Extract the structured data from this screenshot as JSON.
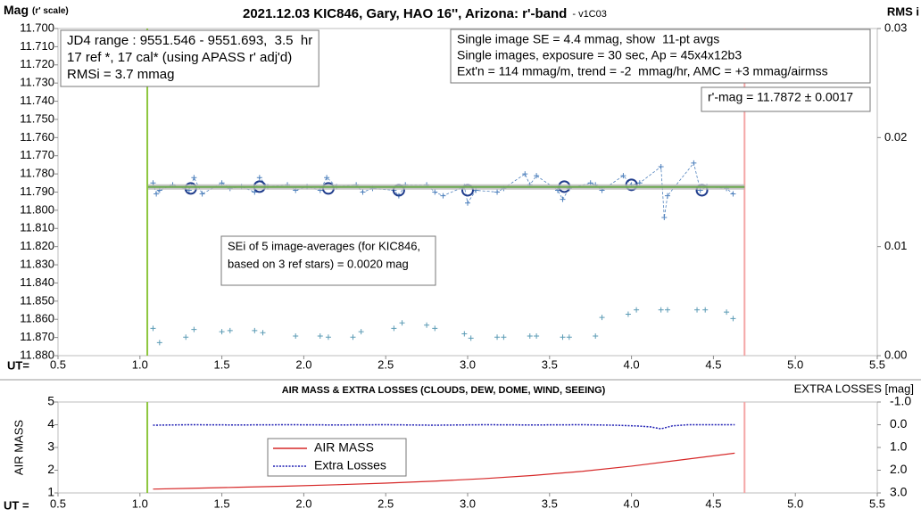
{
  "chart_data": [
    {
      "type": "scatter",
      "title": "2021.12.03 KIC846, Gary, HAO 16'', Arizona: r'-band",
      "subtitle": "- v1C03",
      "ylabel": "Mag",
      "ylabel_note": "(r' scale)",
      "y2label": "RMS i",
      "xlabel": "UT=",
      "xlim": [
        0.5,
        5.5
      ],
      "xticks": [
        0.5,
        {
          "value": 1,
          "label": "1.0"
        },
        1.5,
        {
          "value": 2,
          "label": "2.0"
        },
        2.5,
        {
          "value": 3,
          "label": "3.0"
        },
        3.5,
        {
          "value": 4,
          "label": "4.0"
        },
        4.5,
        {
          "value": 5,
          "label": "5.0"
        },
        5.5
      ],
      "ylim": [
        11.7,
        11.88
      ],
      "y_inverted": true,
      "yticks": [
        {
          "value": 11.7,
          "label": "11.700"
        },
        {
          "value": 11.71,
          "label": "11.710"
        },
        {
          "value": 11.72,
          "label": "11.720"
        },
        {
          "value": 11.73,
          "label": "11.730"
        },
        {
          "value": 11.74,
          "label": "11.740"
        },
        {
          "value": 11.75,
          "label": "11.750"
        },
        {
          "value": 11.76,
          "label": "11.760"
        },
        {
          "value": 11.77,
          "label": "11.770"
        },
        {
          "value": 11.78,
          "label": "11.780"
        },
        {
          "value": 11.79,
          "label": "11.790"
        },
        {
          "value": 11.8,
          "label": "11.800"
        },
        {
          "value": 11.81,
          "label": "11.810"
        },
        {
          "value": 11.82,
          "label": "11.820"
        },
        {
          "value": 11.83,
          "label": "11.830"
        },
        {
          "value": 11.84,
          "label": "11.840"
        },
        {
          "value": 11.85,
          "label": "11.850"
        },
        {
          "value": 11.86,
          "label": "11.860"
        },
        {
          "value": 11.87,
          "label": "11.870"
        },
        {
          "value": 11.88,
          "label": "11.880"
        }
      ],
      "y2lim": [
        0,
        0.03
      ],
      "y2ticks": [
        {
          "value": 0,
          "label": "0.00"
        },
        0.01,
        0.02,
        0.03
      ],
      "vlines": [
        {
          "x": 1.045,
          "color": "#8dc63f"
        },
        {
          "x": 4.69,
          "color": "#f4a6a6"
        }
      ],
      "series": [
        {
          "style": "cross-dashed",
          "color": "#4f81bd",
          "x": [
            1.08,
            1.1,
            1.12,
            1.2,
            1.3,
            1.33,
            1.38,
            1.5,
            1.55,
            1.62,
            1.7,
            1.73,
            1.78,
            1.9,
            1.95,
            2.02,
            2.1,
            2.14,
            2.2,
            2.32,
            2.36,
            2.42,
            2.55,
            2.58,
            2.62,
            2.75,
            2.8,
            2.85,
            2.98,
            3.0,
            3.05,
            3.18,
            3.22,
            3.35,
            3.38,
            3.42,
            3.55,
            3.58,
            3.62,
            3.75,
            3.78,
            3.82,
            3.95,
            4.0,
            4.05,
            4.18,
            4.2,
            4.22,
            4.38,
            4.42,
            4.46,
            4.58,
            4.62
          ],
          "values": [
            11.785,
            11.791,
            11.789,
            11.786,
            11.789,
            11.782,
            11.791,
            11.785,
            11.788,
            11.787,
            11.79,
            11.782,
            11.787,
            11.786,
            11.789,
            11.787,
            11.789,
            11.782,
            11.787,
            11.786,
            11.79,
            11.788,
            11.789,
            11.792,
            11.786,
            11.786,
            11.79,
            11.792,
            11.787,
            11.796,
            11.789,
            11.79,
            11.788,
            11.78,
            11.786,
            11.781,
            11.789,
            11.794,
            11.788,
            11.785,
            11.786,
            11.789,
            11.781,
            11.786,
            11.785,
            11.776,
            11.804,
            11.792,
            11.774,
            11.789,
            11.787,
            11.788,
            11.791
          ]
        },
        {
          "style": "circle",
          "color": "#1f3c8c",
          "x": [
            1.31,
            1.73,
            2.15,
            2.58,
            3.0,
            3.59,
            4.0,
            4.43
          ],
          "values": [
            11.788,
            11.787,
            11.788,
            11.789,
            11.789,
            11.787,
            11.786,
            11.789
          ]
        },
        {
          "style": "band-line",
          "color": "#6aa84f",
          "x": [
            1.05,
            4.69
          ],
          "values": [
            11.7872,
            11.7872
          ]
        },
        {
          "style": "cross",
          "color": "#5b9bb5",
          "axis": "y2",
          "x": [
            1.08,
            1.12,
            1.28,
            1.33,
            1.5,
            1.55,
            1.7,
            1.75,
            1.95,
            2.1,
            2.15,
            2.3,
            2.35,
            2.55,
            2.6,
            2.75,
            2.8,
            2.98,
            3.02,
            3.18,
            3.22,
            3.38,
            3.42,
            3.58,
            3.62,
            3.78,
            3.82,
            3.98,
            4.03,
            4.18,
            4.22,
            4.4,
            4.45,
            4.58,
            4.62
          ],
          "values": [
            0.0025,
            0.0012,
            0.0017,
            0.0024,
            0.0022,
            0.0023,
            0.0023,
            0.0021,
            0.0018,
            0.0018,
            0.0017,
            0.0017,
            0.0022,
            0.0025,
            0.003,
            0.0028,
            0.0025,
            0.002,
            0.0016,
            0.0017,
            0.0017,
            0.0018,
            0.0018,
            0.0017,
            0.0017,
            0.0018,
            0.0035,
            0.0038,
            0.0042,
            0.0042,
            0.0042,
            0.0042,
            0.0042,
            0.004,
            0.0034
          ]
        }
      ],
      "annotations": [
        {
          "lines": [
            "JD4 range : 9551.546 - 9551.693,  3.5  hr",
            "17 ref *, 17 cal* (using APASS r' adj'd)",
            "RMSi = 3.7 mmag"
          ]
        },
        {
          "lines": [
            "Single image SE = 4.4 mmag, show  11-pt avgs",
            "Single images, exposure = 30 sec, Ap = 45x4x12b3",
            "Ext'n = 114 mmag/m, trend = -2  mmag/hr, AMC = +3 mmag/airmss"
          ]
        },
        {
          "lines": [
            "r'-mag = 11.7872 ± 0.0017"
          ]
        },
        {
          "lines": [
            "SEi of 5 image-averages (for KIC846,",
            "based on 3 ref stars) = 0.0020 mag"
          ]
        }
      ]
    },
    {
      "type": "line",
      "title": "AIR MASS & EXTRA LOSSES (CLOUDS, DEW, DOME, WIND, SEEING)",
      "ylabel": "AIR MASS",
      "y2label": "EXTRA LOSSES [mag]",
      "xlabel": "UT =",
      "xlim": [
        0.5,
        5.5
      ],
      "xticks": [
        0.5,
        {
          "value": 1,
          "label": "1.0"
        },
        1.5,
        {
          "value": 2,
          "label": "2.0"
        },
        2.5,
        {
          "value": 3,
          "label": "3.0"
        },
        3.5,
        {
          "value": 4,
          "label": "4.0"
        },
        4.5,
        {
          "value": 5,
          "label": "5.0"
        },
        5.5
      ],
      "ylim": [
        1,
        5
      ],
      "yticks": [
        1,
        2,
        3,
        4,
        5
      ],
      "y2lim": [
        -1,
        3
      ],
      "y2_inverted": true,
      "y2ticks": [
        {
          "value": -1,
          "label": "-1.0"
        },
        {
          "value": 0,
          "label": "0.0"
        },
        {
          "value": 1,
          "label": "1.0"
        },
        {
          "value": 2,
          "label": "2.0"
        },
        {
          "value": 3,
          "label": "3.0"
        }
      ],
      "vlines": [
        {
          "x": 1.045,
          "color": "#8dc63f"
        },
        {
          "x": 4.69,
          "color": "#f4a6a6"
        }
      ],
      "legend": "center",
      "series": [
        {
          "name": "AIR MASS",
          "style": "solid",
          "color": "#d62828",
          "x": [
            1.08,
            1.3,
            1.6,
            1.9,
            2.2,
            2.5,
            2.8,
            3.1,
            3.4,
            3.7,
            4.0,
            4.3,
            4.63
          ],
          "values": [
            1.17,
            1.2,
            1.25,
            1.3,
            1.36,
            1.43,
            1.52,
            1.63,
            1.77,
            1.95,
            2.18,
            2.45,
            2.75
          ]
        },
        {
          "name": "Extra Losses",
          "style": "dotted",
          "color": "#1f1fb4",
          "axis": "y2",
          "x": [
            1.08,
            1.3,
            1.6,
            1.9,
            2.2,
            2.5,
            2.8,
            3.1,
            3.4,
            3.7,
            3.9,
            4.05,
            4.12,
            4.18,
            4.25,
            4.35,
            4.63
          ],
          "values": [
            0.02,
            0,
            0.01,
            0,
            0.01,
            0,
            0.02,
            0,
            0.01,
            0,
            0.02,
            0.06,
            0.1,
            0.18,
            0.05,
            0,
            0
          ]
        }
      ]
    }
  ]
}
